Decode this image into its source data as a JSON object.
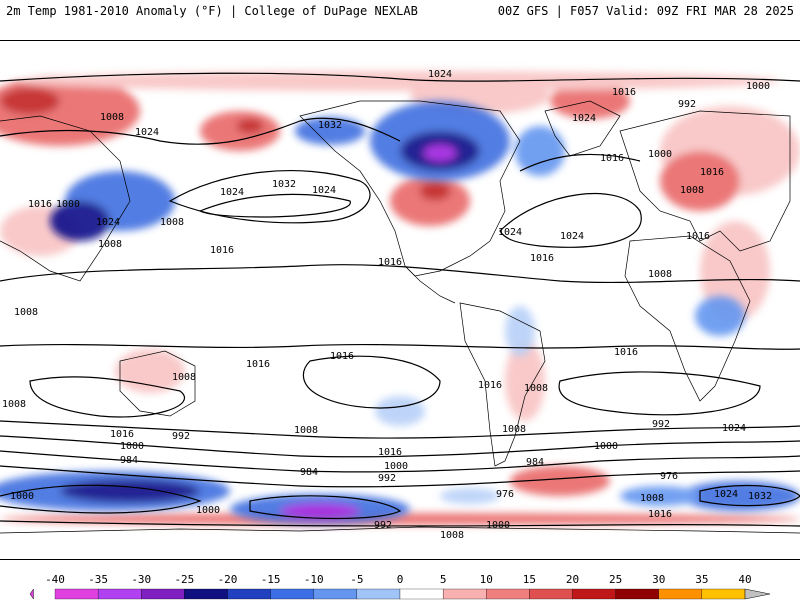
{
  "header": {
    "title_left": "2m Temp 1981-2010 Anomaly (°F) | College of DuPage NEXLAB",
    "title_right": "00Z GFS | F057 Valid: 09Z FRI MAR 28 2025"
  },
  "colorbar": {
    "ticks": [
      "-40",
      "-35",
      "-30",
      "-25",
      "-20",
      "-15",
      "-10",
      "-5",
      "0",
      "5",
      "10",
      "15",
      "20",
      "25",
      "30",
      "35",
      "40"
    ],
    "colors": [
      "#e040e0",
      "#b040f0",
      "#8020c0",
      "#101080",
      "#2040c0",
      "#3c6ee6",
      "#6496f0",
      "#a0c4f8",
      "#ffffff",
      "#f8b0b0",
      "#f08080",
      "#e05050",
      "#c01818",
      "#900000",
      "#ff9000",
      "#ffc000",
      "#c0c0c0"
    ]
  },
  "map": {
    "isobar_labels": [
      "1024",
      "1016",
      "1008",
      "1000",
      "992",
      "984",
      "976",
      "1032"
    ],
    "colors": {
      "warm_light": "#f8c0c0",
      "warm": "#e86060",
      "warm_strong": "#c01818",
      "cold_light": "#b8d0f8",
      "cold": "#4070e0",
      "cold_strong": "#10108a",
      "extreme_cold": "#a020e0"
    }
  }
}
